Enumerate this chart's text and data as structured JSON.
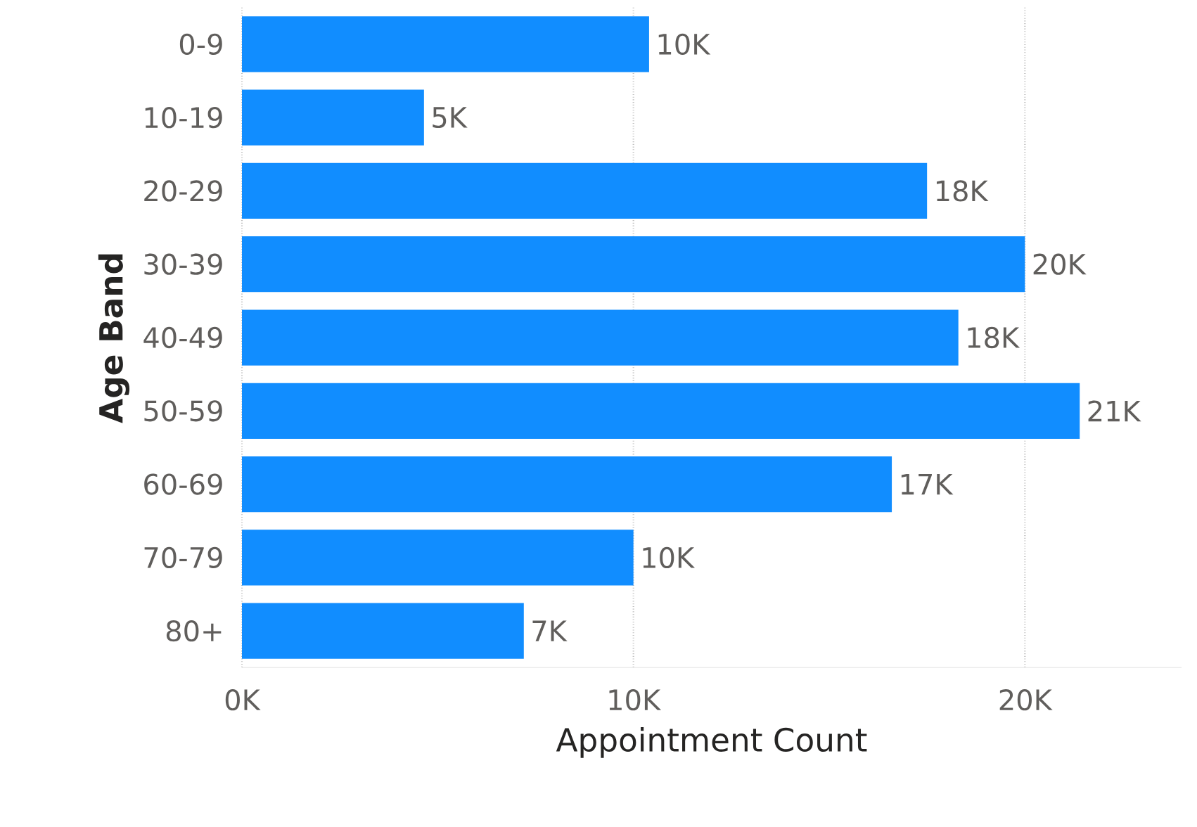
{
  "chart_data": {
    "type": "bar",
    "orientation": "horizontal",
    "xlabel": "Appointment Count",
    "ylabel": "Age Band",
    "categories": [
      "0-9",
      "10-19",
      "20-29",
      "30-39",
      "40-49",
      "50-59",
      "60-69",
      "70-79",
      "80+"
    ],
    "values": [
      10400,
      4650,
      17500,
      20000,
      18300,
      21400,
      16600,
      10000,
      7200
    ],
    "value_labels": [
      "10K",
      "5K",
      "18K",
      "20K",
      "18K",
      "21K",
      "17K",
      "10K",
      "7K"
    ],
    "color": "#118dff",
    "xlim": [
      0,
      24000
    ],
    "xticks": [
      {
        "value": 0,
        "label": "0K"
      },
      {
        "value": 10000,
        "label": "10K"
      },
      {
        "value": 20000,
        "label": "20K"
      }
    ],
    "grid": "x"
  }
}
